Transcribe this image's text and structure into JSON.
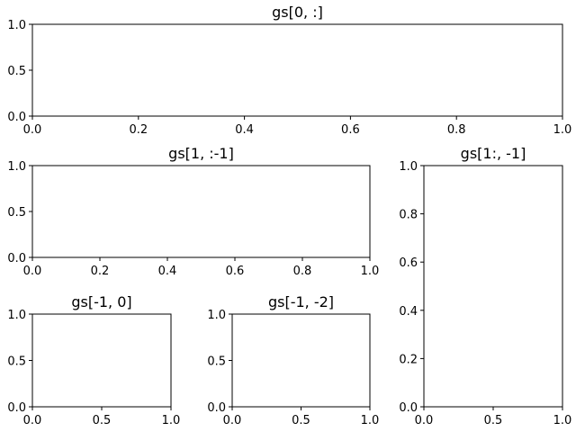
{
  "figure": {
    "background": "#ffffff",
    "axes_color": "#000000"
  },
  "chart_data": [
    {
      "type": "empty-axes",
      "title": "gs[0, :]",
      "xlim": [
        0,
        1
      ],
      "ylim": [
        0,
        1
      ],
      "xticks": [
        "0.0",
        "0.2",
        "0.4",
        "0.6",
        "0.8",
        "1.0"
      ],
      "yticks": [
        "0.0",
        "0.5",
        "1.0"
      ],
      "grid": false
    },
    {
      "type": "empty-axes",
      "title": "gs[1, :-1]",
      "xlim": [
        0,
        1
      ],
      "ylim": [
        0,
        1
      ],
      "xticks": [
        "0.0",
        "0.2",
        "0.4",
        "0.6",
        "0.8",
        "1.0"
      ],
      "yticks": [
        "0.0",
        "0.5",
        "1.0"
      ],
      "grid": false
    },
    {
      "type": "empty-axes",
      "title": "gs[1:, -1]",
      "xlim": [
        0,
        1
      ],
      "ylim": [
        0,
        1
      ],
      "xticks": [
        "0.0",
        "0.5",
        "1.0"
      ],
      "yticks": [
        "0.0",
        "0.2",
        "0.4",
        "0.6",
        "0.8",
        "1.0"
      ],
      "grid": false
    },
    {
      "type": "empty-axes",
      "title": "gs[-1, 0]",
      "xlim": [
        0,
        1
      ],
      "ylim": [
        0,
        1
      ],
      "xticks": [
        "0.0",
        "0.5",
        "1.0"
      ],
      "yticks": [
        "0.0",
        "0.5",
        "1.0"
      ],
      "grid": false
    },
    {
      "type": "empty-axes",
      "title": "gs[-1, -2]",
      "xlim": [
        0,
        1
      ],
      "ylim": [
        0,
        1
      ],
      "xticks": [
        "0.0",
        "0.5",
        "1.0"
      ],
      "yticks": [
        "0.0",
        "0.5",
        "1.0"
      ],
      "grid": false
    }
  ]
}
